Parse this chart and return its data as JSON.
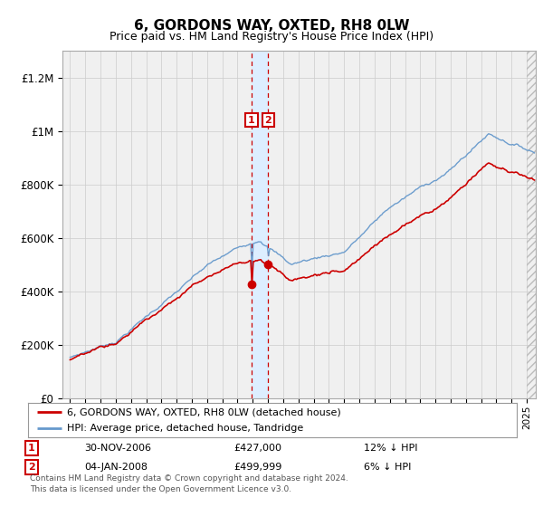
{
  "title": "6, GORDONS WAY, OXTED, RH8 0LW",
  "subtitle": "Price paid vs. HM Land Registry's House Price Index (HPI)",
  "ylim": [
    0,
    1300000
  ],
  "yticks": [
    0,
    200000,
    400000,
    600000,
    800000,
    1000000,
    1200000
  ],
  "ytick_labels": [
    "£0",
    "£200K",
    "£400K",
    "£600K",
    "£800K",
    "£1M",
    "£1.2M"
  ],
  "legend_line1": "6, GORDONS WAY, OXTED, RH8 0LW (detached house)",
  "legend_line2": "HPI: Average price, detached house, Tandridge",
  "sale1_date": 2006.917,
  "sale1_label": "1",
  "sale1_price": 427000,
  "sale1_text": "30-NOV-2006",
  "sale1_pct": "12% ↓ HPI",
  "sale2_date": 2008.014,
  "sale2_label": "2",
  "sale2_price": 499999,
  "sale2_text": "04-JAN-2008",
  "sale2_pct": "6% ↓ HPI",
  "footer": "Contains HM Land Registry data © Crown copyright and database right 2024.\nThis data is licensed under the Open Government Licence v3.0.",
  "line_color_red": "#cc0000",
  "line_color_blue": "#6699cc",
  "shade_color": "#ddeeff",
  "marker_box_color": "#cc0000",
  "bg_color": "#f0f0f0",
  "xmin": 1994.5,
  "xmax": 2025.6
}
